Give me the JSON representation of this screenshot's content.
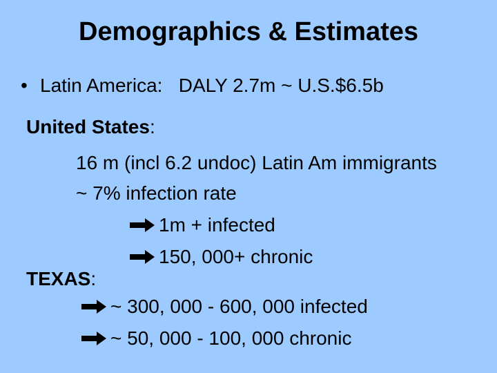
{
  "slide": {
    "title": "Demographics & Estimates",
    "bullet": {
      "marker": "•",
      "text": "Latin America:   DALY 2.7m ~ U.S.$6.5b"
    },
    "united_states": {
      "heading": "United States",
      "colon": ":",
      "lines": [
        "16 m (incl 6.2 undoc) Latin Am immigrants",
        "~ 7% infection rate"
      ],
      "arrow_lines": [
        "1m + infected",
        "150, 000+ chronic"
      ]
    },
    "texas": {
      "heading": "TEXAS",
      "colon": ":",
      "arrow_lines": [
        "~ 300, 000 - 600, 000 infected",
        "~ 50, 000 - 100, 000 chronic"
      ]
    },
    "arrow_icon": "right-arrow-icon",
    "background_color": "#9ecbff"
  }
}
